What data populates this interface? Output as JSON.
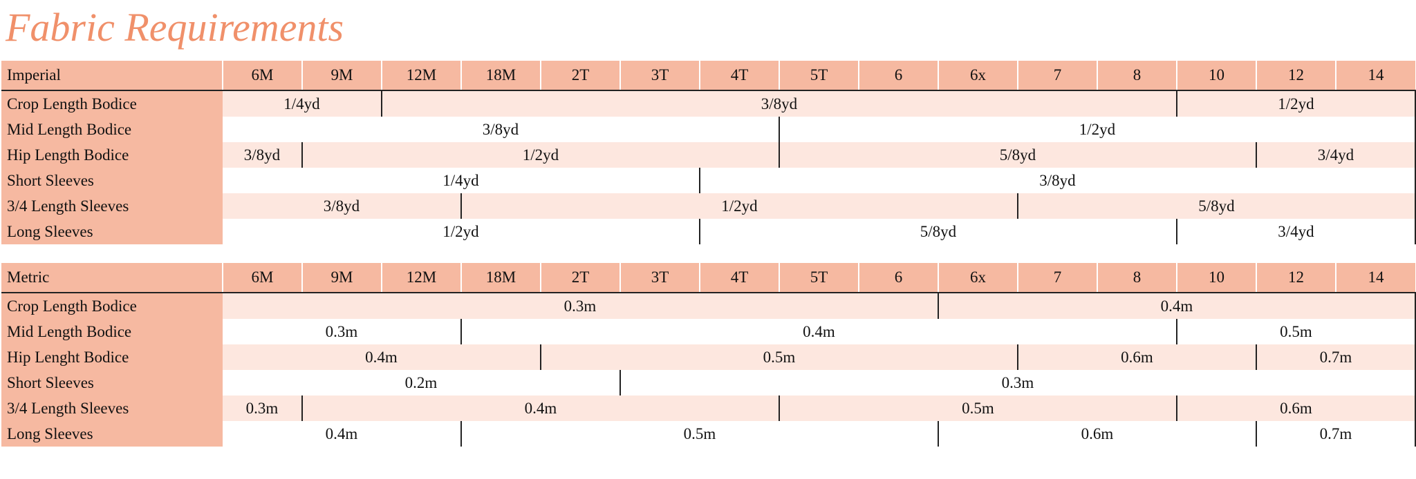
{
  "title": "Fabric Requirements",
  "tables": [
    {
      "header": "Imperial",
      "sizes": [
        "6M",
        "9M",
        "12M",
        "18M",
        "2T",
        "3T",
        "4T",
        "5T",
        "6",
        "6x",
        "7",
        "8",
        "10",
        "12",
        "14"
      ],
      "rows": [
        {
          "label": "Crop Length Bodice",
          "cells": [
            {
              "text": "1/4yd",
              "from": "6M",
              "to": "9M"
            },
            {
              "text": "3/8yd",
              "from": "12M",
              "to": "8"
            },
            {
              "text": "1/2yd",
              "from": "10",
              "to": "14"
            }
          ]
        },
        {
          "label": "Mid Length Bodice",
          "cells": [
            {
              "text": "3/8yd",
              "from": "6M",
              "to": "4T"
            },
            {
              "text": "1/2yd",
              "from": "5T",
              "to": "14"
            }
          ]
        },
        {
          "label": "Hip Length Bodice",
          "cells": [
            {
              "text": "3/8yd",
              "from": "6M",
              "to": "6M"
            },
            {
              "text": "1/2yd",
              "from": "9M",
              "to": "4T"
            },
            {
              "text": "5/8yd",
              "from": "5T",
              "to": "10"
            },
            {
              "text": "3/4yd",
              "from": "12",
              "to": "14"
            }
          ]
        },
        {
          "label": "Short Sleeves",
          "cells": [
            {
              "text": "1/4yd",
              "from": "6M",
              "to": "3T"
            },
            {
              "text": "3/8yd",
              "from": "4T",
              "to": "14"
            }
          ]
        },
        {
          "label": "3/4 Length Sleeves",
          "cells": [
            {
              "text": "3/8yd",
              "from": "6M",
              "to": "12M"
            },
            {
              "text": "1/2yd",
              "from": "18M",
              "to": "6x"
            },
            {
              "text": "5/8yd",
              "from": "7",
              "to": "14"
            }
          ]
        },
        {
          "label": "Long Sleeves",
          "cells": [
            {
              "text": "1/2yd",
              "from": "6M",
              "to": "3T"
            },
            {
              "text": "5/8yd",
              "from": "4T",
              "to": "8"
            },
            {
              "text": "3/4yd",
              "from": "10",
              "to": "14"
            }
          ]
        }
      ]
    },
    {
      "header": "Metric",
      "sizes": [
        "6M",
        "9M",
        "12M",
        "18M",
        "2T",
        "3T",
        "4T",
        "5T",
        "6",
        "6x",
        "7",
        "8",
        "10",
        "12",
        "14"
      ],
      "rows": [
        {
          "label": "Crop Length Bodice",
          "cells": [
            {
              "text": "0.3m",
              "from": "6M",
              "to": "6"
            },
            {
              "text": "0.4m",
              "from": "6x",
              "to": "14"
            }
          ]
        },
        {
          "label": "Mid Length Bodice",
          "cells": [
            {
              "text": "0.3m",
              "from": "6M",
              "to": "12M"
            },
            {
              "text": "0.4m",
              "from": "18M",
              "to": "8"
            },
            {
              "text": "0.5m",
              "from": "10",
              "to": "14"
            }
          ]
        },
        {
          "label": "Hip Lenght Bodice",
          "cells": [
            {
              "text": "0.4m",
              "from": "6M",
              "to": "18M"
            },
            {
              "text": "0.5m",
              "from": "2T",
              "to": "6x"
            },
            {
              "text": "0.6m",
              "from": "7",
              "to": "10"
            },
            {
              "text": "0.7m",
              "from": "12",
              "to": "14"
            }
          ]
        },
        {
          "label": "Short Sleeves",
          "cells": [
            {
              "text": "0.2m",
              "from": "6M",
              "to": "2T"
            },
            {
              "text": "0.3m",
              "from": "3T",
              "to": "14"
            }
          ]
        },
        {
          "label": "3/4 Length Sleeves",
          "cells": [
            {
              "text": "0.3m",
              "from": "6M",
              "to": "6M"
            },
            {
              "text": "0.4m",
              "from": "9M",
              "to": "4T"
            },
            {
              "text": "0.5m",
              "from": "5T",
              "to": "8"
            },
            {
              "text": "0.6m",
              "from": "10",
              "to": "14"
            }
          ]
        },
        {
          "label": "Long Sleeves",
          "cells": [
            {
              "text": "0.4m",
              "from": "6M",
              "to": "12M"
            },
            {
              "text": "0.5m",
              "from": "18M",
              "to": "6"
            },
            {
              "text": "0.6m",
              "from": "6x",
              "to": "10"
            },
            {
              "text": "0.7m",
              "from": "12",
              "to": "14"
            }
          ]
        }
      ]
    }
  ]
}
